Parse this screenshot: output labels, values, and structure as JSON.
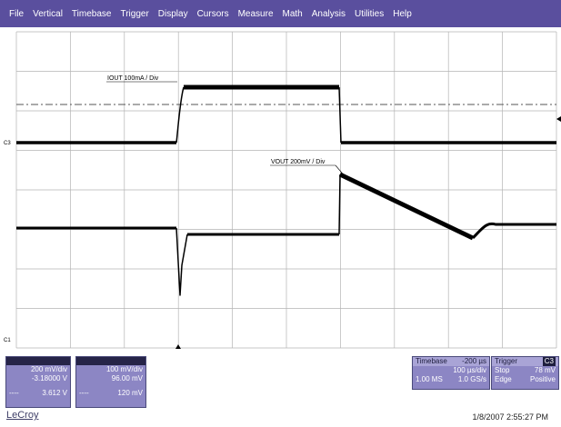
{
  "menu": [
    "File",
    "Vertical",
    "Timebase",
    "Trigger",
    "Display",
    "Cursors",
    "Measure",
    "Math",
    "Analysis",
    "Utilities",
    "Help"
  ],
  "traces": {
    "iout_label": "IOUT 100mA / Div",
    "vout_label": "VOUT 200mV / Div",
    "ch3_marker": "C3",
    "ch1_marker": "C1"
  },
  "channel1": {
    "scale": "200 mV/div",
    "offset": "-3.18000 V",
    "dash": "----",
    "value": "3.612 V"
  },
  "channel2": {
    "scale": "100 mV/div",
    "offset": "96.00 mV",
    "dash": "----",
    "value": "120 mV"
  },
  "timebase": {
    "label": "Timebase",
    "delay": "-200 µs",
    "per_div": "100 µs/div",
    "samples": "1.00 MS",
    "rate": "1.0 GS/s"
  },
  "trigger": {
    "label": "Trigger",
    "channel": "C3",
    "mode": "Stop",
    "level": "78 mV",
    "type": "Edge",
    "slope": "Positive"
  },
  "brand": "LeCroy",
  "datetime": "1/8/2007 2:55:27 PM",
  "colors": {
    "menubar": "#5a4f9e",
    "panel": "#8c86c4",
    "panel_header": "#262448"
  }
}
